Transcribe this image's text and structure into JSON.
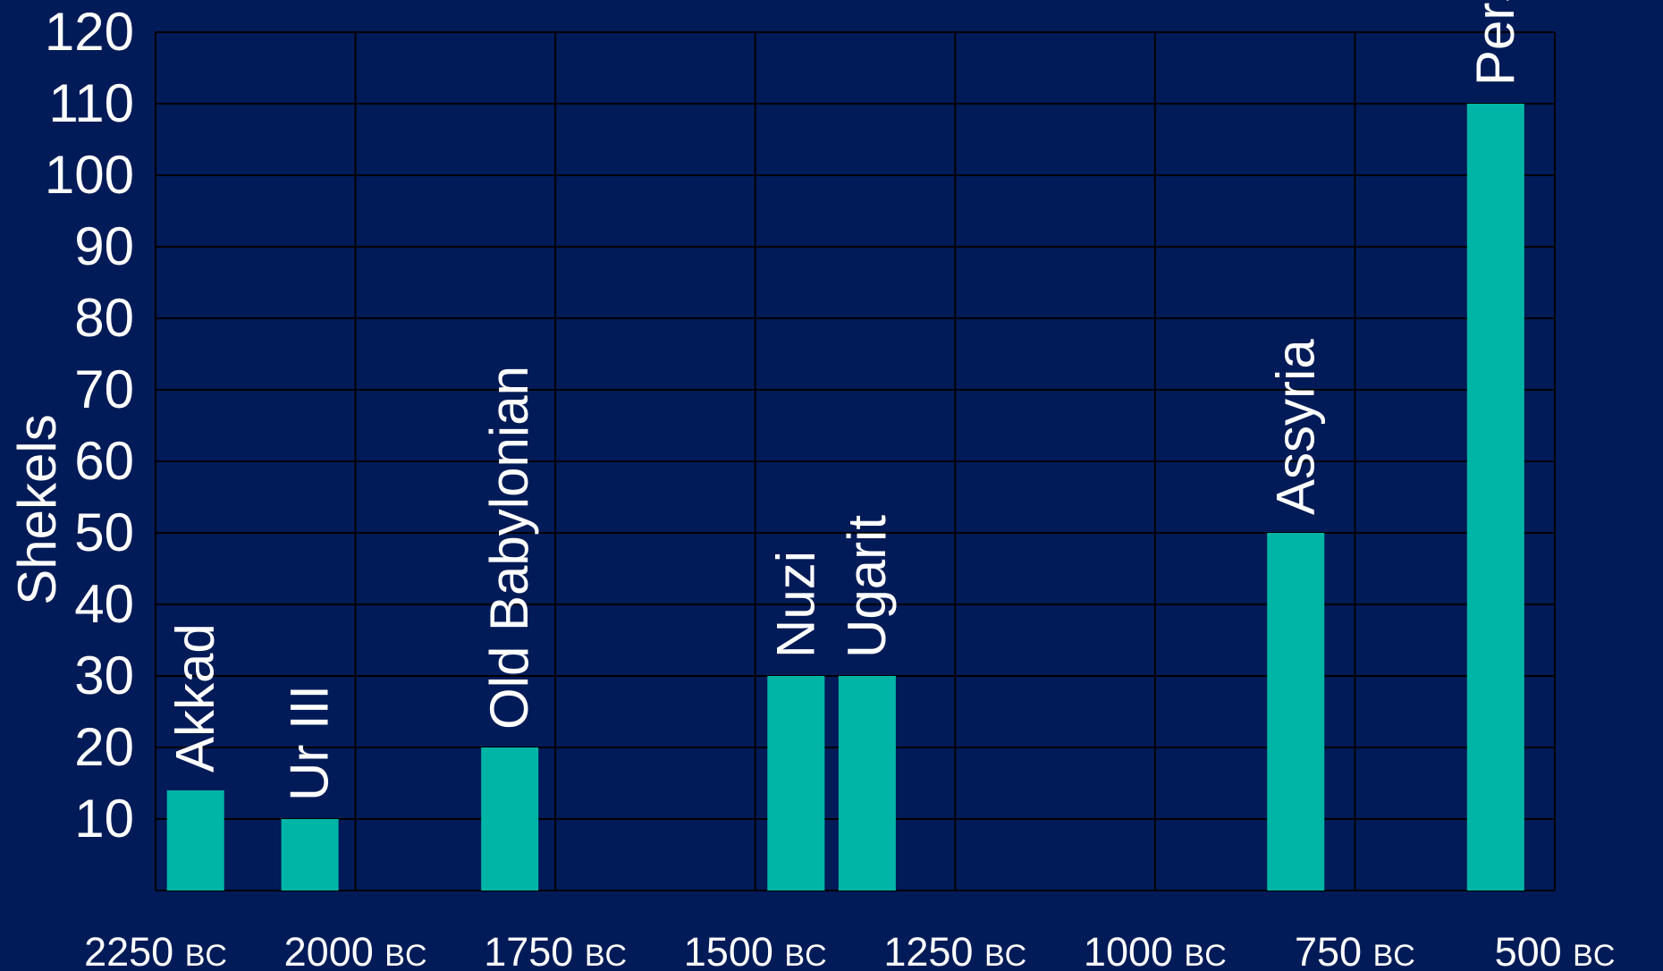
{
  "chart_data": {
    "type": "bar",
    "xlabel": "",
    "ylabel": "Shekels",
    "ylim": [
      0,
      120
    ],
    "y_ticks": [
      10,
      20,
      30,
      40,
      50,
      60,
      70,
      80,
      90,
      100,
      110,
      120
    ],
    "xlim": [
      2250,
      500
    ],
    "x_unit_label": "BC",
    "x_ticks": [
      {
        "value": 2250,
        "number": "2250",
        "era": "BC"
      },
      {
        "value": 2000,
        "number": "2000",
        "era": "BC"
      },
      {
        "value": 1750,
        "number": "1750",
        "era": "BC"
      },
      {
        "value": 1500,
        "number": "1500",
        "era": "BC"
      },
      {
        "value": 1250,
        "number": "1250",
        "era": "BC"
      },
      {
        "value": 1000,
        "number": "1000",
        "era": "BC"
      },
      {
        "value": 750,
        "number": "750",
        "era": "BC"
      },
      {
        "value": 500,
        "number": "500",
        "era": "BC"
      }
    ],
    "bars": [
      {
        "label": "Akkad",
        "x": 2200,
        "value": 14
      },
      {
        "label": "Ur III",
        "x": 2057,
        "value": 10
      },
      {
        "label": "Old Babylonian",
        "x": 1807,
        "value": 20
      },
      {
        "label": "Nuzi",
        "x": 1449,
        "value": 30
      },
      {
        "label": "Ugarit",
        "x": 1360,
        "value": 30
      },
      {
        "label": "Assyria",
        "x": 824,
        "value": 50
      },
      {
        "label": "Persia",
        "x": 574,
        "value": 110
      }
    ],
    "grid": true,
    "colors": {
      "background": "#001b57",
      "bar": "#00b5a5",
      "grid": "#000000",
      "text": "#ffffff"
    }
  }
}
